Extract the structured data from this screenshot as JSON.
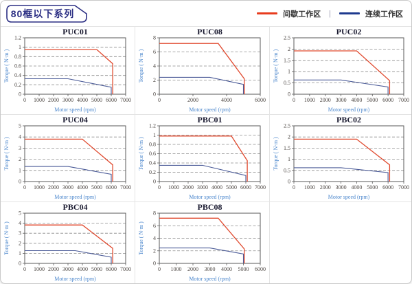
{
  "header": {
    "badge": "80框以下系列"
  },
  "legend": {
    "separator": "|",
    "items": [
      {
        "name": "intermittent-zone",
        "label": "间歇工作区",
        "color": "#e83c1e"
      },
      {
        "name": "continuous-zone",
        "label": "连续工作区",
        "color": "#1e3a8e"
      }
    ]
  },
  "axis": {
    "x_label": "Motor speed (rpm)",
    "y_label": "Torque ( N·m )"
  },
  "colors": {
    "intermittent_line": "#e04a2f",
    "continuous_line": "#4a5a97",
    "badge": "#2b2e83"
  },
  "grid": {
    "columns": 3,
    "rows": 3,
    "empty_last_cell": true
  },
  "chart_data": [
    {
      "type": "line",
      "title": "PUC01",
      "xlabel": "Motor speed (rpm)",
      "ylabel": "Torque ( N·m )",
      "xlim": [
        0,
        7000
      ],
      "x_ticks": [
        0,
        1000,
        2000,
        3000,
        4000,
        5000,
        6000,
        7000
      ],
      "ylim": [
        0,
        1.2
      ],
      "y_ticks": [
        0,
        0.2,
        0.4,
        0.6,
        0.8,
        1,
        1.2
      ],
      "series": [
        {
          "name": "间歇工作区",
          "color": "#e04a2f",
          "points": [
            [
              0,
              0.95
            ],
            [
              5000,
              0.95
            ],
            [
              6100,
              0.65
            ],
            [
              6100,
              0
            ]
          ]
        },
        {
          "name": "连续工作区",
          "color": "#4a5a97",
          "points": [
            [
              0,
              0.33
            ],
            [
              3000,
              0.33
            ],
            [
              6000,
              0.15
            ],
            [
              6000,
              0
            ]
          ]
        }
      ]
    },
    {
      "type": "line",
      "title": "PUC08",
      "xlabel": "Motor speed (rpm)",
      "ylabel": "Torque ( N·m )",
      "xlim": [
        0,
        6000
      ],
      "x_ticks": [
        0,
        2000,
        4000,
        6000
      ],
      "ylim": [
        0,
        8
      ],
      "y_ticks": [
        0,
        2,
        4,
        6,
        8
      ],
      "series": [
        {
          "name": "间歇工作区",
          "color": "#e04a2f",
          "points": [
            [
              0,
              7.2
            ],
            [
              3500,
              7.2
            ],
            [
              5050,
              2.2
            ],
            [
              5050,
              0
            ]
          ]
        },
        {
          "name": "连续工作区",
          "color": "#4a5a97",
          "points": [
            [
              0,
              2.4
            ],
            [
              3000,
              2.4
            ],
            [
              5000,
              1.4
            ],
            [
              5000,
              0
            ]
          ]
        }
      ]
    },
    {
      "type": "line",
      "title": "PUC02",
      "xlabel": "Motor speed (rpm)",
      "ylabel": "Torque ( N·m )",
      "xlim": [
        0,
        7000
      ],
      "x_ticks": [
        0,
        1000,
        2000,
        3000,
        4000,
        5000,
        6000,
        7000
      ],
      "ylim": [
        0,
        2.5
      ],
      "y_ticks": [
        0,
        0.5,
        1,
        1.5,
        2,
        2.5
      ],
      "series": [
        {
          "name": "间歇工作区",
          "color": "#e04a2f",
          "points": [
            [
              0,
              1.92
            ],
            [
              4000,
              1.92
            ],
            [
              6100,
              0.6
            ],
            [
              6100,
              0
            ]
          ]
        },
        {
          "name": "连续工作区",
          "color": "#4a5a97",
          "points": [
            [
              0,
              0.63
            ],
            [
              3000,
              0.63
            ],
            [
              6000,
              0.32
            ],
            [
              6000,
              0
            ]
          ]
        }
      ]
    },
    {
      "type": "line",
      "title": "PUC04",
      "xlabel": "Motor speed (rpm)",
      "ylabel": "Torque ( N·m )",
      "xlim": [
        0,
        7000
      ],
      "x_ticks": [
        0,
        1000,
        2000,
        3000,
        4000,
        5000,
        6000,
        7000
      ],
      "ylim": [
        0,
        5
      ],
      "y_ticks": [
        0,
        1,
        2,
        3,
        4,
        5
      ],
      "series": [
        {
          "name": "间歇工作区",
          "color": "#e04a2f",
          "points": [
            [
              0,
              3.8
            ],
            [
              4000,
              3.8
            ],
            [
              6100,
              1.5
            ],
            [
              6100,
              0
            ]
          ]
        },
        {
          "name": "连续工作区",
          "color": "#4a5a97",
          "points": [
            [
              0,
              1.35
            ],
            [
              3000,
              1.35
            ],
            [
              6000,
              0.65
            ],
            [
              6000,
              0
            ]
          ]
        }
      ]
    },
    {
      "type": "line",
      "title": "PBC01",
      "xlabel": "Motor speed (rpm)",
      "ylabel": "Torque ( N·m )",
      "xlim": [
        0,
        7000
      ],
      "x_ticks": [
        0,
        1000,
        2000,
        3000,
        4000,
        5000,
        6000,
        7000
      ],
      "ylim": [
        0,
        1.2
      ],
      "y_ticks": [
        0,
        0.2,
        0.4,
        0.6,
        0.8,
        1,
        1.2
      ],
      "series": [
        {
          "name": "间歇工作区",
          "color": "#e04a2f",
          "points": [
            [
              0,
              0.98
            ],
            [
              5000,
              0.98
            ],
            [
              6100,
              0.45
            ],
            [
              6100,
              0
            ]
          ]
        },
        {
          "name": "连续工作区",
          "color": "#4a5a97",
          "points": [
            [
              0,
              0.35
            ],
            [
              3000,
              0.35
            ],
            [
              6000,
              0.13
            ],
            [
              6000,
              0
            ]
          ]
        }
      ]
    },
    {
      "type": "line",
      "title": "PBC02",
      "xlabel": "Motor speed (rpm)",
      "ylabel": "Torque ( N·m )",
      "xlim": [
        0,
        7000
      ],
      "x_ticks": [
        0,
        1000,
        2000,
        3000,
        4000,
        5000,
        6000,
        7000
      ],
      "ylim": [
        0,
        2.5
      ],
      "y_ticks": [
        0,
        0.5,
        1,
        1.5,
        2,
        2.5
      ],
      "series": [
        {
          "name": "间歇工作区",
          "color": "#e04a2f",
          "points": [
            [
              0,
              1.9
            ],
            [
              4000,
              1.9
            ],
            [
              6100,
              0.75
            ],
            [
              6100,
              0
            ]
          ]
        },
        {
          "name": "连续工作区",
          "color": "#4a5a97",
          "points": [
            [
              0,
              0.62
            ],
            [
              3000,
              0.62
            ],
            [
              6000,
              0.4
            ],
            [
              6000,
              0
            ]
          ]
        }
      ]
    },
    {
      "type": "line",
      "title": "PBC04",
      "xlabel": "Motor speed (rpm)",
      "ylabel": "Torque ( N·m )",
      "xlim": [
        0,
        7000
      ],
      "x_ticks": [
        0,
        1000,
        2000,
        3000,
        4000,
        5000,
        6000,
        7000
      ],
      "ylim": [
        0,
        5
      ],
      "y_ticks": [
        0,
        1,
        2,
        3,
        4,
        5
      ],
      "series": [
        {
          "name": "间歇工作区",
          "color": "#e04a2f",
          "points": [
            [
              0,
              3.82
            ],
            [
              4000,
              3.82
            ],
            [
              6100,
              1.5
            ],
            [
              6100,
              0
            ]
          ]
        },
        {
          "name": "连续工作区",
          "color": "#4a5a97",
          "points": [
            [
              0,
              1.27
            ],
            [
              3500,
              1.27
            ],
            [
              6000,
              0.62
            ],
            [
              6000,
              0
            ]
          ]
        }
      ]
    },
    {
      "type": "line",
      "title": "PBC08",
      "xlabel": "Motor speed (rpm)",
      "ylabel": "Torque ( N·m )",
      "xlim": [
        0,
        6000
      ],
      "x_ticks": [
        0,
        1000,
        2000,
        3000,
        4000,
        5000,
        6000
      ],
      "ylim": [
        0,
        8
      ],
      "y_ticks": [
        0,
        2,
        4,
        6,
        8
      ],
      "series": [
        {
          "name": "间歇工作区",
          "color": "#e04a2f",
          "points": [
            [
              0,
              7.2
            ],
            [
              3500,
              7.2
            ],
            [
              5050,
              2.3
            ],
            [
              5050,
              0
            ]
          ]
        },
        {
          "name": "连续工作区",
          "color": "#4a5a97",
          "points": [
            [
              0,
              2.45
            ],
            [
              3000,
              2.45
            ],
            [
              5000,
              1.5
            ],
            [
              5000,
              0
            ]
          ]
        }
      ]
    }
  ]
}
